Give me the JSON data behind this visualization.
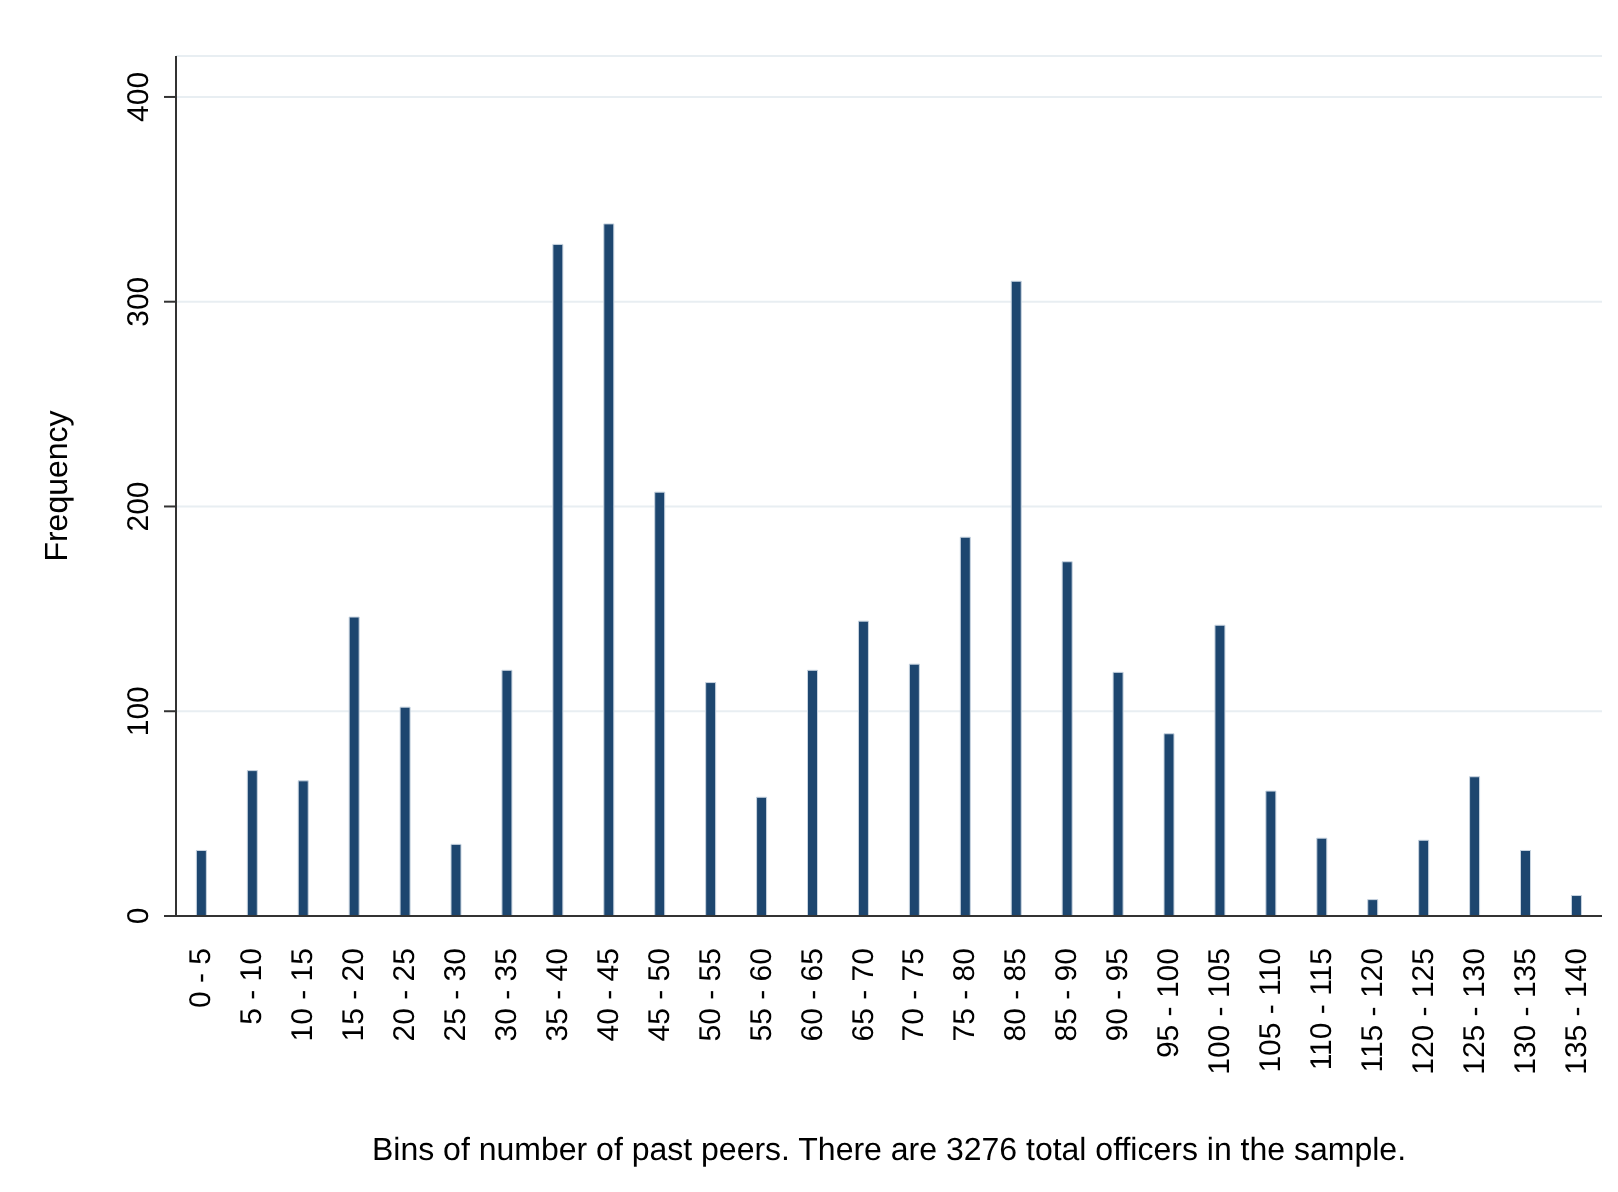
{
  "chart_data": {
    "type": "bar",
    "xlabel": "Bins of number of past peers. There are 3276 total officers in the sample.",
    "ylabel": "Frequency",
    "categories": [
      "0 - 5",
      "5 - 10",
      "10 - 15",
      "15 - 20",
      "20 - 25",
      "25 - 30",
      "30 - 35",
      "35 - 40",
      "40 - 45",
      "45 - 50",
      "50 - 55",
      "55 - 60",
      "60 - 65",
      "65 - 70",
      "70 - 75",
      "75 - 80",
      "80 - 85",
      "85 - 90",
      "90 - 95",
      "95 - 100",
      "100 - 105",
      "105 - 110",
      "110 - 115",
      "115 - 120",
      "120 - 125",
      "125 - 130",
      "130 - 135",
      "135 - 140"
    ],
    "values": [
      32,
      71,
      66,
      146,
      102,
      35,
      120,
      328,
      338,
      207,
      114,
      58,
      120,
      144,
      123,
      185,
      310,
      173,
      119,
      89,
      142,
      61,
      38,
      8,
      37,
      68,
      32,
      10
    ],
    "color": "#1d466f",
    "ylim": [
      0,
      420
    ],
    "yticks": [
      0,
      100,
      200,
      300,
      400
    ],
    "grid": "y"
  }
}
